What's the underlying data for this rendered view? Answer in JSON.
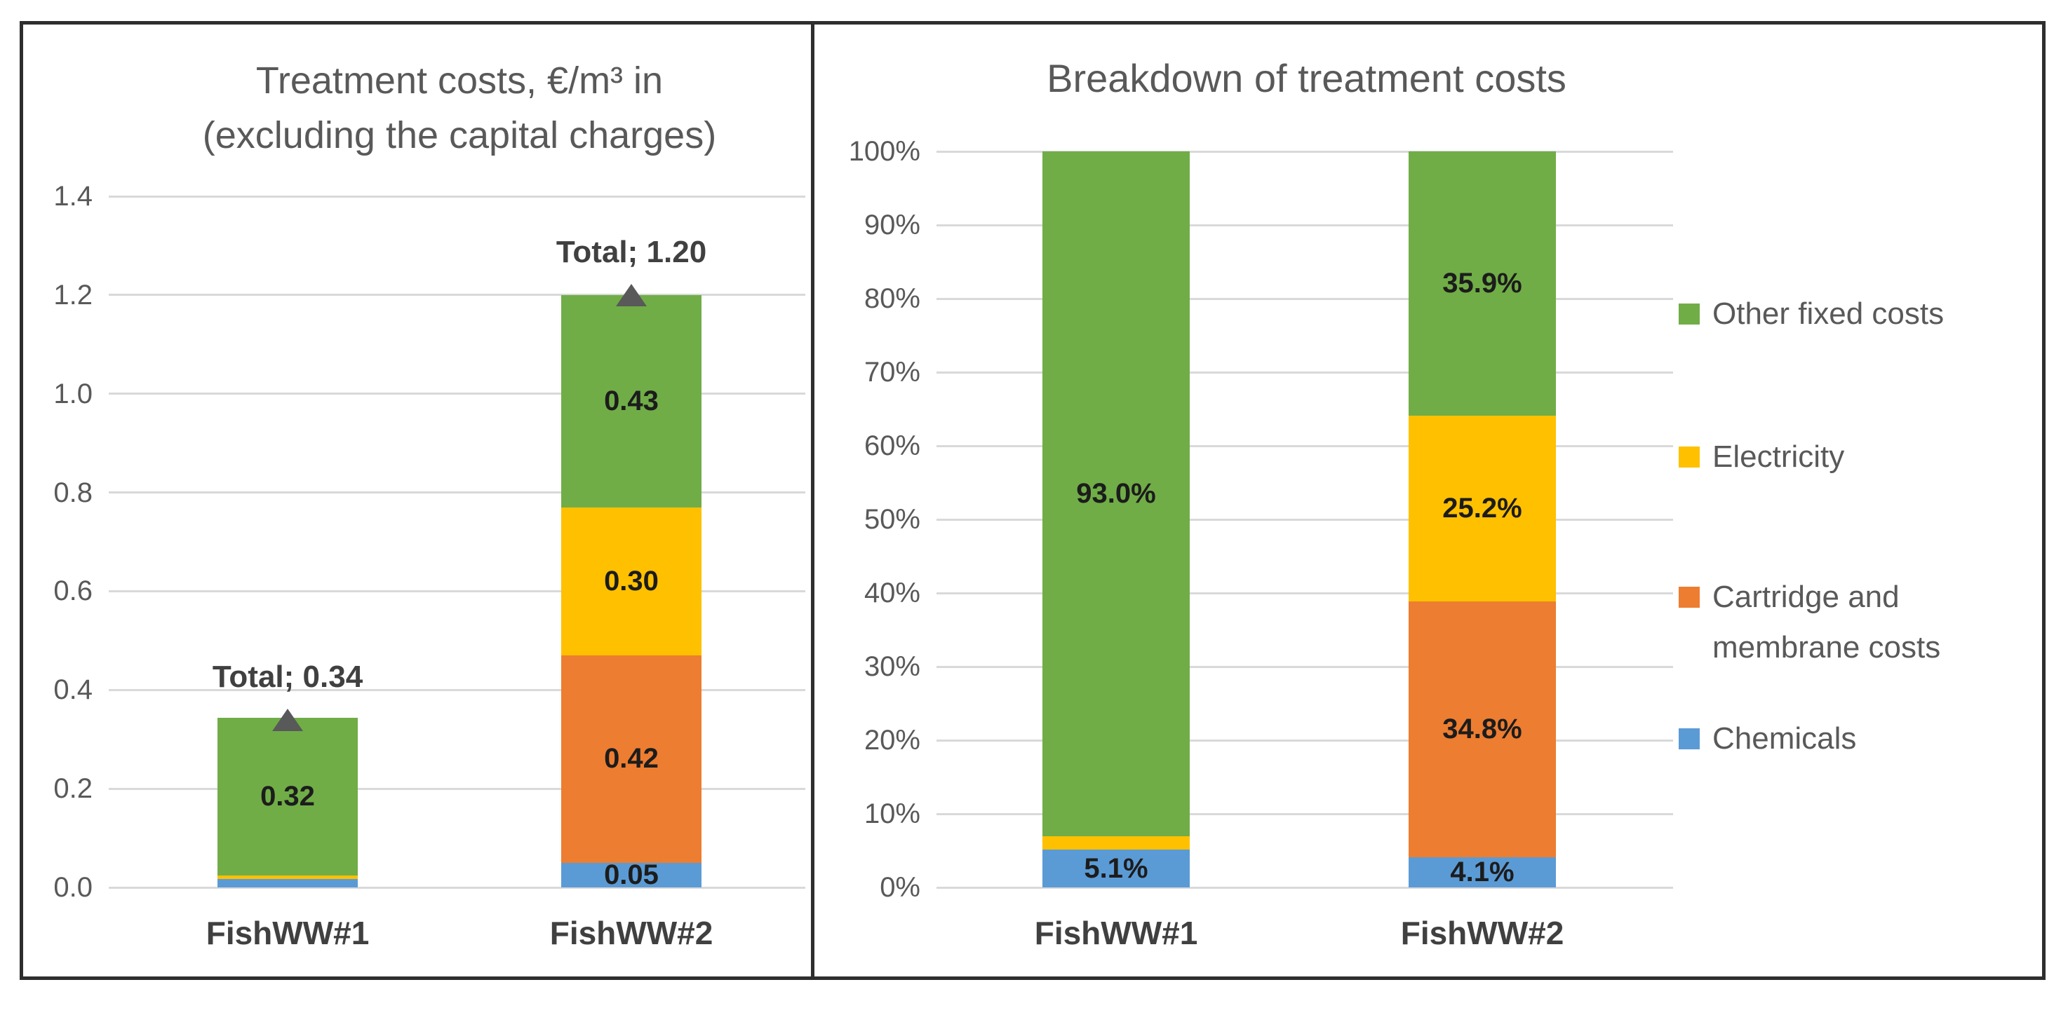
{
  "style": {
    "background": "#FFFFFF",
    "frame_color": "#2e2e2e",
    "grid_color": "#D9D9D9",
    "axis_text_color": "#595959",
    "title_color": "#595959",
    "category_text_color": "#404040",
    "data_label_color": "#1c1c1c",
    "total_label_color": "#404040"
  },
  "chart_data": [
    {
      "type": "bar",
      "stacked": true,
      "series_order": "bottom-up",
      "title": "Treatment costs, €/m³ in (excluding the capital charges)",
      "title_lines": [
        "Treatment costs, €/m³ in",
        "(excluding the capital charges)"
      ],
      "categories": [
        "FishWW#1",
        "FishWW#2"
      ],
      "series": [
        {
          "name": "Chemicals",
          "color": "#5B9BD5",
          "values": [
            0.017,
            0.05
          ],
          "labels": [
            "",
            "0.05"
          ]
        },
        {
          "name": "Cartridge and membrane costs",
          "color": "#ED7D31",
          "values": [
            0,
            0.42
          ],
          "labels": [
            "",
            "0.42"
          ]
        },
        {
          "name": "Electricity",
          "color": "#FFC000",
          "values": [
            0.007,
            0.3
          ],
          "labels": [
            "",
            "0.30"
          ]
        },
        {
          "name": "Other fixed costs",
          "color": "#70AD47",
          "values": [
            0.32,
            0.43
          ],
          "labels": [
            "0.32",
            "0.43"
          ]
        }
      ],
      "totals": [
        {
          "label": "Total; 0.34",
          "value": 0.34
        },
        {
          "label": "Total; 1.20",
          "value": 1.2
        }
      ],
      "marker_color": "#595959",
      "ylim": [
        0,
        1.4
      ],
      "ytick_values": [
        0,
        0.2,
        0.4,
        0.6,
        0.8,
        1.0,
        1.2,
        1.4
      ],
      "ytick_labels": [
        "0.0",
        "0.2",
        "0.4",
        "0.6",
        "0.8",
        "1.0",
        "1.2",
        "1.4"
      ],
      "grid": true,
      "legend": null
    },
    {
      "type": "bar",
      "stacked": true,
      "series_order": "bottom-up",
      "title": "Breakdown of treatment costs",
      "categories": [
        "FishWW#1",
        "FishWW#2"
      ],
      "series": [
        {
          "name": "Chemicals",
          "color": "#5B9BD5",
          "values": [
            5.1,
            4.1
          ],
          "labels": [
            "5.1%",
            "4.1%"
          ]
        },
        {
          "name": "Cartridge and membrane costs",
          "color": "#ED7D31",
          "values": [
            0,
            34.8
          ],
          "labels": [
            "",
            "34.8%"
          ]
        },
        {
          "name": "Electricity",
          "color": "#FFC000",
          "values": [
            1.9,
            25.2
          ],
          "labels": [
            "",
            "25.2%"
          ]
        },
        {
          "name": "Other fixed costs",
          "color": "#70AD47",
          "values": [
            93.0,
            35.9
          ],
          "labels": [
            "93.0%",
            "35.9%"
          ]
        }
      ],
      "ylim": [
        0,
        100
      ],
      "ytick_values": [
        0,
        10,
        20,
        30,
        40,
        50,
        60,
        70,
        80,
        90,
        100
      ],
      "ytick_labels": [
        "0%",
        "10%",
        "20%",
        "30%",
        "40%",
        "50%",
        "60%",
        "70%",
        "80%",
        "90%",
        "100%"
      ],
      "grid": true,
      "legend_position": "right",
      "legend": [
        {
          "label": "Other fixed costs",
          "color": "#70AD47"
        },
        {
          "label": "Electricity",
          "color": "#FFC000"
        },
        {
          "label": "Cartridge and membrane costs",
          "color": "#ED7D31"
        },
        {
          "label": "Chemicals",
          "color": "#5B9BD5"
        }
      ]
    }
  ]
}
